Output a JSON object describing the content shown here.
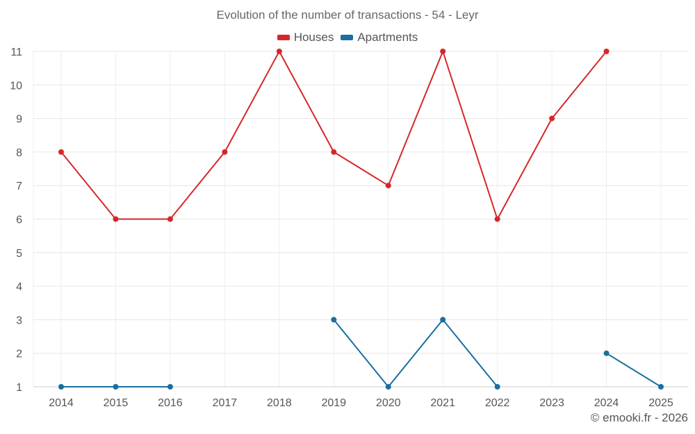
{
  "chart_data": {
    "type": "line",
    "title": "Evolution of the number of transactions - 54 - Leyr",
    "categories": [
      "2014",
      "2015",
      "2016",
      "2017",
      "2018",
      "2019",
      "2020",
      "2021",
      "2022",
      "2023",
      "2024",
      "2025"
    ],
    "series": [
      {
        "name": "Houses",
        "color": "#d62728",
        "values": [
          8,
          6,
          6,
          8,
          11,
          8,
          7,
          11,
          6,
          9,
          11,
          null
        ]
      },
      {
        "name": "Apartments",
        "color": "#1a6fa0",
        "values": [
          1,
          1,
          1,
          null,
          null,
          3,
          1,
          3,
          1,
          null,
          2,
          1
        ]
      }
    ],
    "yticks": [
      1,
      2,
      3,
      4,
      5,
      6,
      7,
      8,
      9,
      10,
      11
    ],
    "ylim": [
      1,
      11
    ],
    "grid": true,
    "legend_position": "top-center",
    "xlabel": "",
    "ylabel": ""
  },
  "footer": {
    "copyright": "© emooki.fr - 2026"
  }
}
